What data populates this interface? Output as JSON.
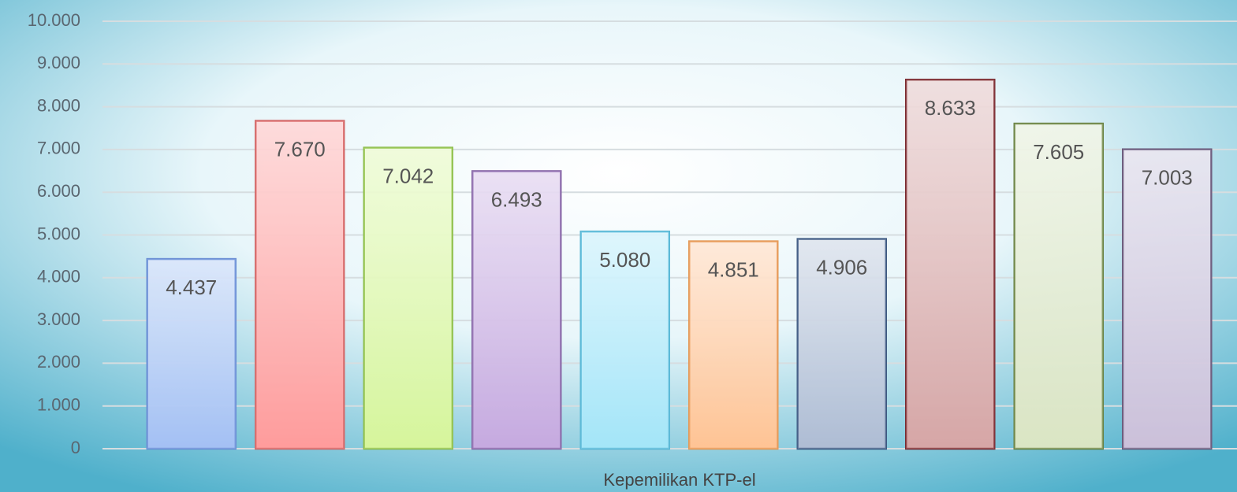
{
  "chart_data": {
    "type": "bar",
    "xlabel": "Kepemilikan KTP-el",
    "categories": [
      null,
      null,
      null,
      null,
      null,
      null,
      null,
      null,
      null,
      null
    ],
    "values": [
      4437,
      7670,
      7042,
      6493,
      5080,
      4851,
      4906,
      8633,
      7605,
      7003
    ],
    "value_labels": [
      "4.437",
      "7.670",
      "7.042",
      "6.493",
      "5.080",
      "4.851",
      "4.906",
      "8.633",
      "7.605",
      "7.003"
    ],
    "colors": [
      "#a4c0f4",
      "#ff9c9c",
      "#d6f59c",
      "#c6aae0",
      "#a4e6f8",
      "#ffc494",
      "#aebcd4",
      "#d6a6a6",
      "#dbe5c4",
      "#cbc0da"
    ],
    "edge_colors": [
      "#6a8ed4",
      "#d06868",
      "#8cbc4c",
      "#8868a6",
      "#58b6d4",
      "#e49856",
      "#3c5880",
      "#7a2a30",
      "#688040",
      "#685878"
    ],
    "ylim": [
      0,
      10000
    ],
    "yticks": [
      0,
      {
        "value": 1000,
        "label": "1.000"
      },
      {
        "value": 2000,
        "label": "2.000"
      },
      {
        "value": 3000,
        "label": "3.000"
      },
      {
        "value": 4000,
        "label": "4.000"
      },
      {
        "value": 5000,
        "label": "5.000"
      },
      {
        "value": 6000,
        "label": "6.000"
      },
      {
        "value": 7000,
        "label": "7.000"
      },
      {
        "value": 8000,
        "label": "8.000"
      },
      {
        "value": 9000,
        "label": "9.000"
      },
      {
        "value": 10000,
        "label": "10.000"
      }
    ],
    "grid": true
  }
}
